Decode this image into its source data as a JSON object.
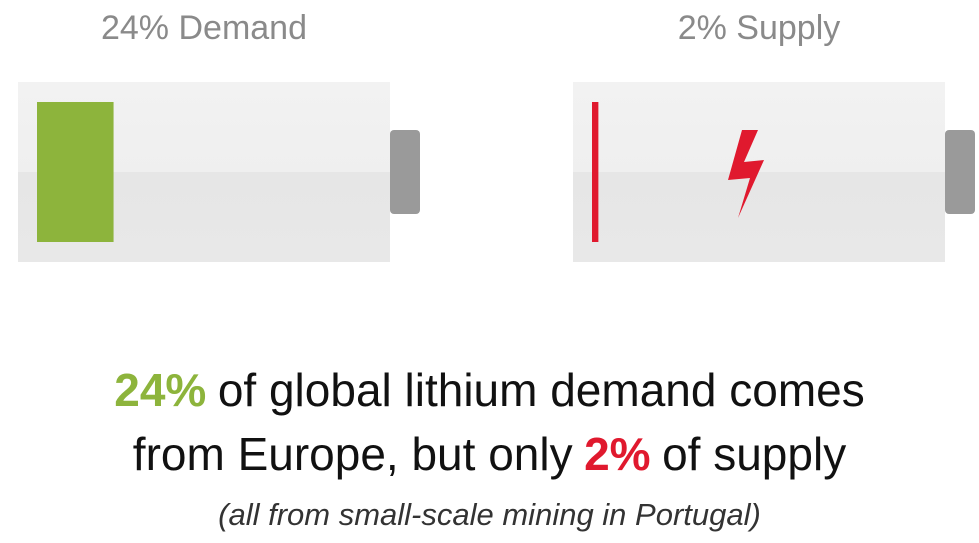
{
  "chart_data": {
    "type": "battery",
    "categories": [
      "24% Demand",
      "2% Supply"
    ],
    "values": [
      24,
      2
    ],
    "colors": [
      "#8db43c",
      "#e0192e"
    ],
    "ylim": [
      0,
      100
    ],
    "headline": [
      [
        "24%",
        "of global lithium demand comes"
      ],
      [
        "from Europe, but only",
        "2%",
        "of supply"
      ]
    ],
    "note": "(all from small-scale mining in Portugal)"
  }
}
